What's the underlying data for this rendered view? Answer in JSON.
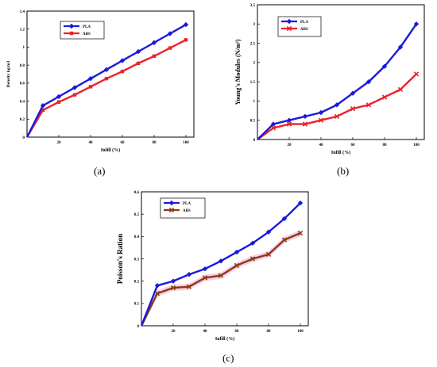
{
  "panels": [
    {
      "id": "a",
      "caption": "(a)",
      "chart_data": {
        "type": "line",
        "xlabel": "Infill (%)",
        "ylabel": "Density kg/m3",
        "xlim": [
          0,
          105
        ],
        "ylim": [
          0,
          1.4
        ],
        "xticks": [
          20,
          40,
          60,
          80,
          100
        ],
        "yticks": [
          0,
          0.2,
          0.4,
          0.6,
          0.8,
          1,
          1.2,
          1.4
        ],
        "ytick_labels": [
          "0",
          "0.2",
          "0.4",
          "0.6",
          "0.8",
          "1",
          "1.2",
          "1.4"
        ],
        "legend_position": "top-left",
        "grid": false,
        "series": [
          {
            "name": "PLA",
            "color": "#1a1adb",
            "marker": "diamond",
            "x": [
              0,
              10,
              20,
              30,
              40,
              50,
              60,
              70,
              80,
              90,
              100
            ],
            "y": [
              0,
              0.35,
              0.45,
              0.55,
              0.65,
              0.75,
              0.85,
              0.95,
              1.05,
              1.15,
              1.25
            ]
          },
          {
            "name": "ABS",
            "color": "#e8232b",
            "marker": "square",
            "x": [
              0,
              10,
              20,
              30,
              40,
              50,
              60,
              70,
              80,
              90,
              100
            ],
            "y": [
              0,
              0.3,
              0.39,
              0.47,
              0.56,
              0.65,
              0.73,
              0.82,
              0.9,
              0.99,
              1.08
            ]
          }
        ]
      }
    },
    {
      "id": "b",
      "caption": "(b)",
      "chart_data": {
        "type": "line",
        "xlabel": "Infill (%)",
        "ylabel": "Young's Modules (N/m²)",
        "xlim": [
          0,
          105
        ],
        "ylim": [
          0,
          3.5
        ],
        "xticks": [
          20,
          40,
          60,
          80,
          100
        ],
        "yticks": [
          0,
          0.5,
          1,
          1.5,
          2,
          2.5,
          3,
          3.5
        ],
        "ytick_labels": [
          "0",
          "0.5",
          "1",
          "1.5",
          "2",
          "2.5",
          "3",
          "3.5"
        ],
        "legend_position": "top-left",
        "grid": false,
        "series": [
          {
            "name": "PLA",
            "color": "#1a1adb",
            "marker": "diamond",
            "x": [
              0,
              10,
              20,
              30,
              40,
              50,
              60,
              70,
              80,
              90,
              100
            ],
            "y": [
              0,
              0.4,
              0.5,
              0.6,
              0.7,
              0.9,
              1.2,
              1.5,
              1.9,
              2.4,
              3.0
            ]
          },
          {
            "name": "ABS",
            "color": "#e8232b",
            "marker": "cross",
            "x": [
              0,
              10,
              20,
              30,
              40,
              50,
              60,
              70,
              80,
              90,
              100
            ],
            "y": [
              0,
              0.3,
              0.4,
              0.4,
              0.5,
              0.6,
              0.8,
              0.9,
              1.1,
              1.3,
              1.7
            ]
          }
        ]
      }
    },
    {
      "id": "c",
      "caption": "(c)",
      "chart_data": {
        "type": "line",
        "xlabel": "Infill (%)",
        "ylabel": "Poisson's Ration",
        "xlim": [
          0,
          105
        ],
        "ylim": [
          0,
          0.6
        ],
        "xticks": [
          20,
          40,
          60,
          80,
          100
        ],
        "yticks": [
          0,
          0.1,
          0.2,
          0.3,
          0.4,
          0.5,
          0.6
        ],
        "ytick_labels": [
          "0",
          "0.1",
          "0.2",
          "0.3",
          "0.4",
          "0.5",
          "0.6"
        ],
        "legend_position": "top-left",
        "grid": false,
        "series": [
          {
            "name": "PLA",
            "color": "#1a1adb",
            "marker": "diamond",
            "x": [
              0,
              10,
              20,
              30,
              40,
              50,
              60,
              70,
              80,
              90,
              100
            ],
            "y": [
              0,
              0.18,
              0.2,
              0.23,
              0.255,
              0.29,
              0.33,
              0.37,
              0.42,
              0.48,
              0.55
            ]
          },
          {
            "name": "ABS",
            "color": "#8b3a12",
            "marker": "cross",
            "band_color": "#f2a6d6",
            "x": [
              0,
              10,
              20,
              30,
              40,
              50,
              60,
              70,
              80,
              90,
              100
            ],
            "y": [
              0,
              0.145,
              0.17,
              0.175,
              0.215,
              0.225,
              0.27,
              0.3,
              0.32,
              0.385,
              0.415
            ]
          }
        ]
      }
    }
  ]
}
